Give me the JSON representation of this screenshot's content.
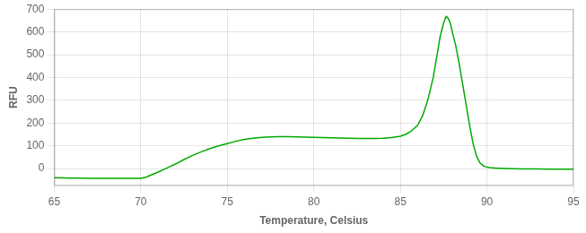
{
  "chart_data": {
    "type": "line",
    "xlabel": "Temperature, Celsius",
    "ylabel": "RFU",
    "x": [
      65.0,
      65.5,
      66.0,
      66.5,
      67.0,
      67.5,
      68.0,
      68.5,
      69.0,
      69.5,
      70.0,
      70.3,
      70.6,
      71.0,
      71.5,
      72.0,
      72.5,
      73.0,
      73.5,
      74.0,
      74.5,
      75.0,
      75.5,
      76.0,
      76.5,
      77.0,
      77.5,
      78.0,
      78.5,
      79.0,
      79.5,
      80.0,
      80.5,
      81.0,
      81.5,
      82.0,
      82.5,
      83.0,
      83.5,
      84.0,
      84.5,
      85.0,
      85.3,
      85.6,
      86.0,
      86.3,
      86.6,
      86.9,
      87.1,
      87.3,
      87.5,
      87.6,
      87.65,
      87.7,
      87.8,
      87.9,
      88.0,
      88.2,
      88.4,
      88.6,
      88.8,
      89.0,
      89.2,
      89.4,
      89.6,
      89.8,
      90.0,
      90.3,
      90.6,
      91.0,
      91.5,
      92.0,
      92.5,
      93.0,
      93.5,
      94.0,
      94.5,
      95.0
    ],
    "values": [
      -40,
      -41,
      -42,
      -42,
      -43,
      -43,
      -43,
      -43,
      -43,
      -43,
      -43,
      -38,
      -28,
      -15,
      2,
      20,
      40,
      58,
      74,
      88,
      100,
      110,
      120,
      128,
      133,
      137,
      139,
      140,
      140,
      139,
      138,
      137,
      136,
      135,
      134,
      133,
      132,
      132,
      132,
      133,
      136,
      142,
      150,
      163,
      190,
      235,
      305,
      400,
      490,
      580,
      640,
      660,
      668,
      665,
      655,
      635,
      600,
      540,
      460,
      370,
      280,
      190,
      110,
      55,
      25,
      12,
      6,
      3,
      2,
      1,
      0,
      -1,
      -1,
      -1,
      -2,
      -2,
      -2,
      -2
    ],
    "color": "#00aa00",
    "xlim": [
      65,
      95
    ],
    "ylim": [
      -75,
      700
    ],
    "xticks": [
      65,
      70,
      75,
      80,
      85,
      90,
      95
    ],
    "yticks": [
      0,
      100,
      200,
      300,
      400,
      500,
      600,
      700
    ],
    "grid": true
  }
}
